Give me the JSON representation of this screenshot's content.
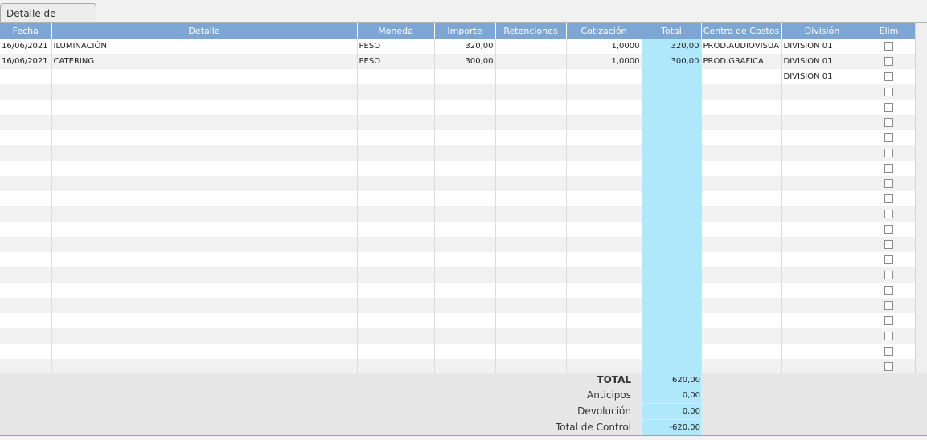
{
  "tab": {
    "label": "Detalle de Costos"
  },
  "columns": [
    "Fecha",
    "Detalle",
    "Moneda",
    "Importe",
    "Retenciones",
    "Cotización",
    "Total",
    "Centro de Costos",
    "División",
    "Elim"
  ],
  "rows": [
    {
      "fecha": "16/06/2021",
      "detalle": "ILUMINACIÓN",
      "moneda": "PESO",
      "importe": "320,00",
      "retenciones": "",
      "cotizacion": "1,0000",
      "total": "320,00",
      "centro": "PROD.AUDIOVISUA",
      "division": "DIVISION 01",
      "elim": false
    },
    {
      "fecha": "16/06/2021",
      "detalle": "CATERING",
      "moneda": "PESO",
      "importe": "300,00",
      "retenciones": "",
      "cotizacion": "1,0000",
      "total": "300,00",
      "centro": "PROD.GRAFICA",
      "division": "DIVISION 01",
      "elim": false
    },
    {
      "fecha": "",
      "detalle": "",
      "moneda": "",
      "importe": "",
      "retenciones": "",
      "cotizacion": "",
      "total": "",
      "centro": "",
      "division": "DIVISION 01",
      "elim": false
    }
  ],
  "empty_rows": 19,
  "summary": {
    "total_label": "TOTAL",
    "total_value": "620,00",
    "anticipos_label": "Anticipos",
    "anticipos_value": "0,00",
    "devolucion_label": "Devolución",
    "devolucion_value": "0,00",
    "control_label": "Total de Control",
    "control_value": "-620,00"
  },
  "colors": {
    "header": "#7ea6d4",
    "total_col": "#aee8fa"
  }
}
